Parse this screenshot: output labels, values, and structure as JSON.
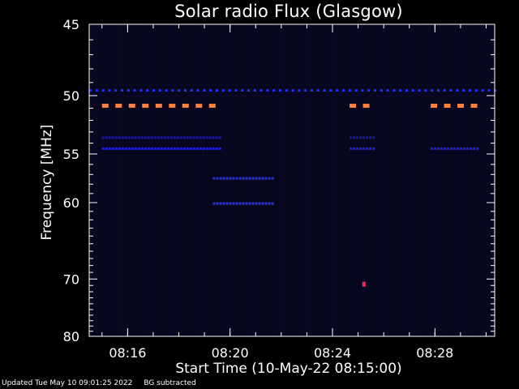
{
  "chart_data": {
    "type": "heatmap",
    "title": "Solar radio Flux (Glasgow)",
    "xlabel": "Start Time (10-May-22 08:15:00)",
    "ylabel": "Frequency [MHz]",
    "y_scale": "reciprocal",
    "ylim": [
      45,
      80
    ],
    "xlim": [
      "08:14:30",
      "08:30:20"
    ],
    "x_ticks": [
      "08:16",
      "08:20",
      "08:24",
      "08:28"
    ],
    "y_ticks": [
      45,
      50,
      55,
      60,
      70,
      80
    ],
    "background_color": "#07071f",
    "features": [
      {
        "color": "#ff8040",
        "y_mhz": 50.8,
        "x_spans": [
          [
            "08:15:00",
            "08:19:40"
          ],
          [
            "08:24:40",
            "08:25:40"
          ],
          [
            "08:27:50",
            "08:29:40"
          ]
        ]
      },
      {
        "color": "#2030ff",
        "y_mhz": 49.6,
        "x_spans": [
          [
            "08:14:30",
            "08:30:20"
          ]
        ]
      },
      {
        "color": "#2020e0",
        "y_mhz": 54.5,
        "x_spans": [
          [
            "08:15:00",
            "08:19:40"
          ],
          [
            "08:24:40",
            "08:25:40"
          ],
          [
            "08:27:50",
            "08:29:40"
          ]
        ]
      },
      {
        "color": "#1a1a9a",
        "y_mhz": 53.5,
        "x_spans": [
          [
            "08:15:00",
            "08:19:40"
          ],
          [
            "08:24:40",
            "08:25:40"
          ]
        ]
      },
      {
        "color": "#2233dd",
        "y_mhz": 57.4,
        "x_spans": [
          [
            "08:19:20",
            "08:21:40"
          ]
        ]
      },
      {
        "color": "#2233dd",
        "y_mhz": 60.1,
        "x_spans": [
          [
            "08:19:20",
            "08:21:40"
          ]
        ]
      },
      {
        "color": "#ff2060",
        "y_mhz": 70.8,
        "x_spans": [
          [
            "08:25:10",
            "08:25:20"
          ]
        ]
      }
    ]
  },
  "footer": {
    "updated": "Updated Tue May 10 09:01:25 2022",
    "note": "BG subtracted"
  }
}
